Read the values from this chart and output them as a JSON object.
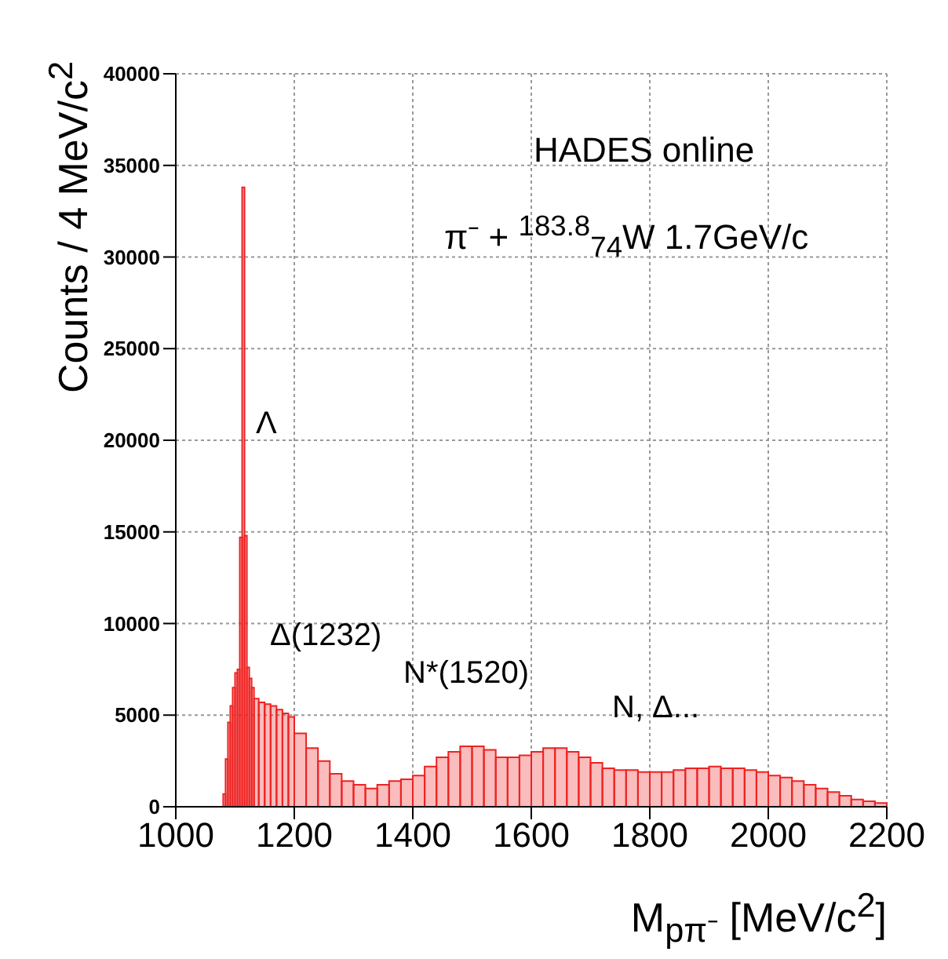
{
  "chart_data": {
    "type": "histogram",
    "xlabel": "M$_{pπ⁻}$  [MeV/c$^{2}$]",
    "ylabel": "Counts / 4 MeV/c$^{2}$",
    "color": "#ee2222",
    "bins": [
      1080,
      1084,
      1088,
      1092,
      1096,
      1100,
      1104,
      1108,
      1112,
      1116,
      1120,
      1124,
      1128,
      1132,
      1140,
      1150,
      1160,
      1170,
      1180,
      1190,
      1200,
      1220,
      1240,
      1260,
      1280,
      1300,
      1320,
      1340,
      1360,
      1380,
      1400,
      1420,
      1440,
      1460,
      1480,
      1500,
      1520,
      1540,
      1560,
      1580,
      1600,
      1620,
      1640,
      1660,
      1680,
      1700,
      1720,
      1740,
      1760,
      1780,
      1800,
      1820,
      1840,
      1860,
      1880,
      1900,
      1920,
      1940,
      1960,
      1980,
      2000,
      2020,
      2040,
      2060,
      2080,
      2100,
      2120,
      2140,
      2160,
      2180,
      2200
    ],
    "values": [
      700,
      2600,
      4600,
      5500,
      6500,
      7300,
      7500,
      14700,
      33800,
      14800,
      7600,
      7000,
      6500,
      5900,
      5700,
      5600,
      5500,
      5300,
      5100,
      4900,
      4000,
      3200,
      2500,
      1800,
      1400,
      1200,
      1000,
      1200,
      1400,
      1500,
      1700,
      2200,
      2700,
      3000,
      3300,
      3300,
      3100,
      2700,
      2700,
      2800,
      3000,
      3200,
      3200,
      3000,
      2700,
      2400,
      2100,
      2000,
      2000,
      1900,
      1900,
      1900,
      2000,
      2100,
      2100,
      2200,
      2100,
      2100,
      2000,
      1900,
      1700,
      1600,
      1400,
      1200,
      1000,
      800,
      600,
      400,
      300,
      200
    ],
    "xlim": [
      1000,
      2200
    ],
    "xticks": [
      1000,
      1200,
      1400,
      1600,
      1800,
      2000,
      2200
    ],
    "ylim": [
      0,
      40000
    ],
    "yticks": [
      0,
      5000,
      10000,
      15000,
      20000,
      25000,
      30000,
      35000,
      40000
    ],
    "grid": true,
    "annotations": [
      "HADES online",
      "π⁻ + $^{183.8}$$_{74}$W  1.7GeV/c",
      "Λ",
      "Δ(1232)",
      "N*(1520)",
      "N, Δ..."
    ]
  }
}
